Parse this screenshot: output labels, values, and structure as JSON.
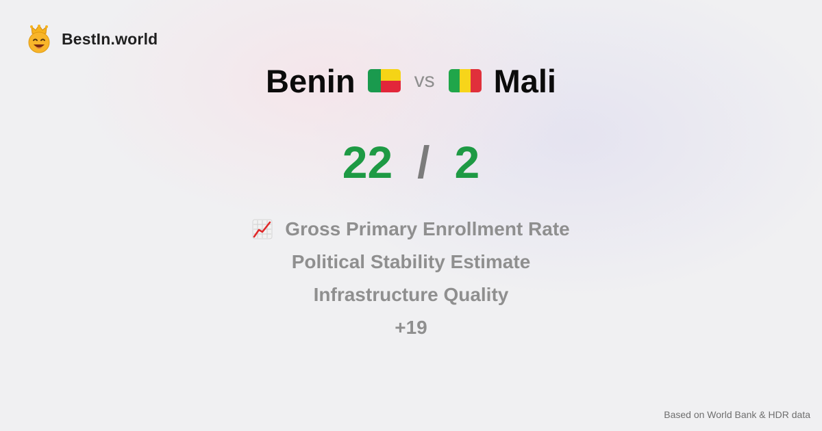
{
  "brand": {
    "name": "BestIn.world",
    "icon": "crown-smiley-icon"
  },
  "comparison": {
    "left": {
      "country": "Benin",
      "flag_colors": {
        "green": "#1a9a4e",
        "yellow": "#f5d416",
        "red": "#e2263a"
      }
    },
    "vs_label": "vs",
    "right": {
      "country": "Mali",
      "flag_colors": {
        "green": "#20a64a",
        "yellow": "#f7d51a",
        "red": "#e0303b"
      }
    }
  },
  "score": {
    "left": "22",
    "separator": "/",
    "right": "2",
    "color": "#1e9a44"
  },
  "metrics": {
    "icon": "chart-increasing-icon",
    "items": [
      "Gross Primary Enrollment Rate",
      "Political Stability Estimate",
      "Infrastructure Quality",
      "+19"
    ]
  },
  "footer": {
    "text": "Based on World Bank & HDR data"
  }
}
